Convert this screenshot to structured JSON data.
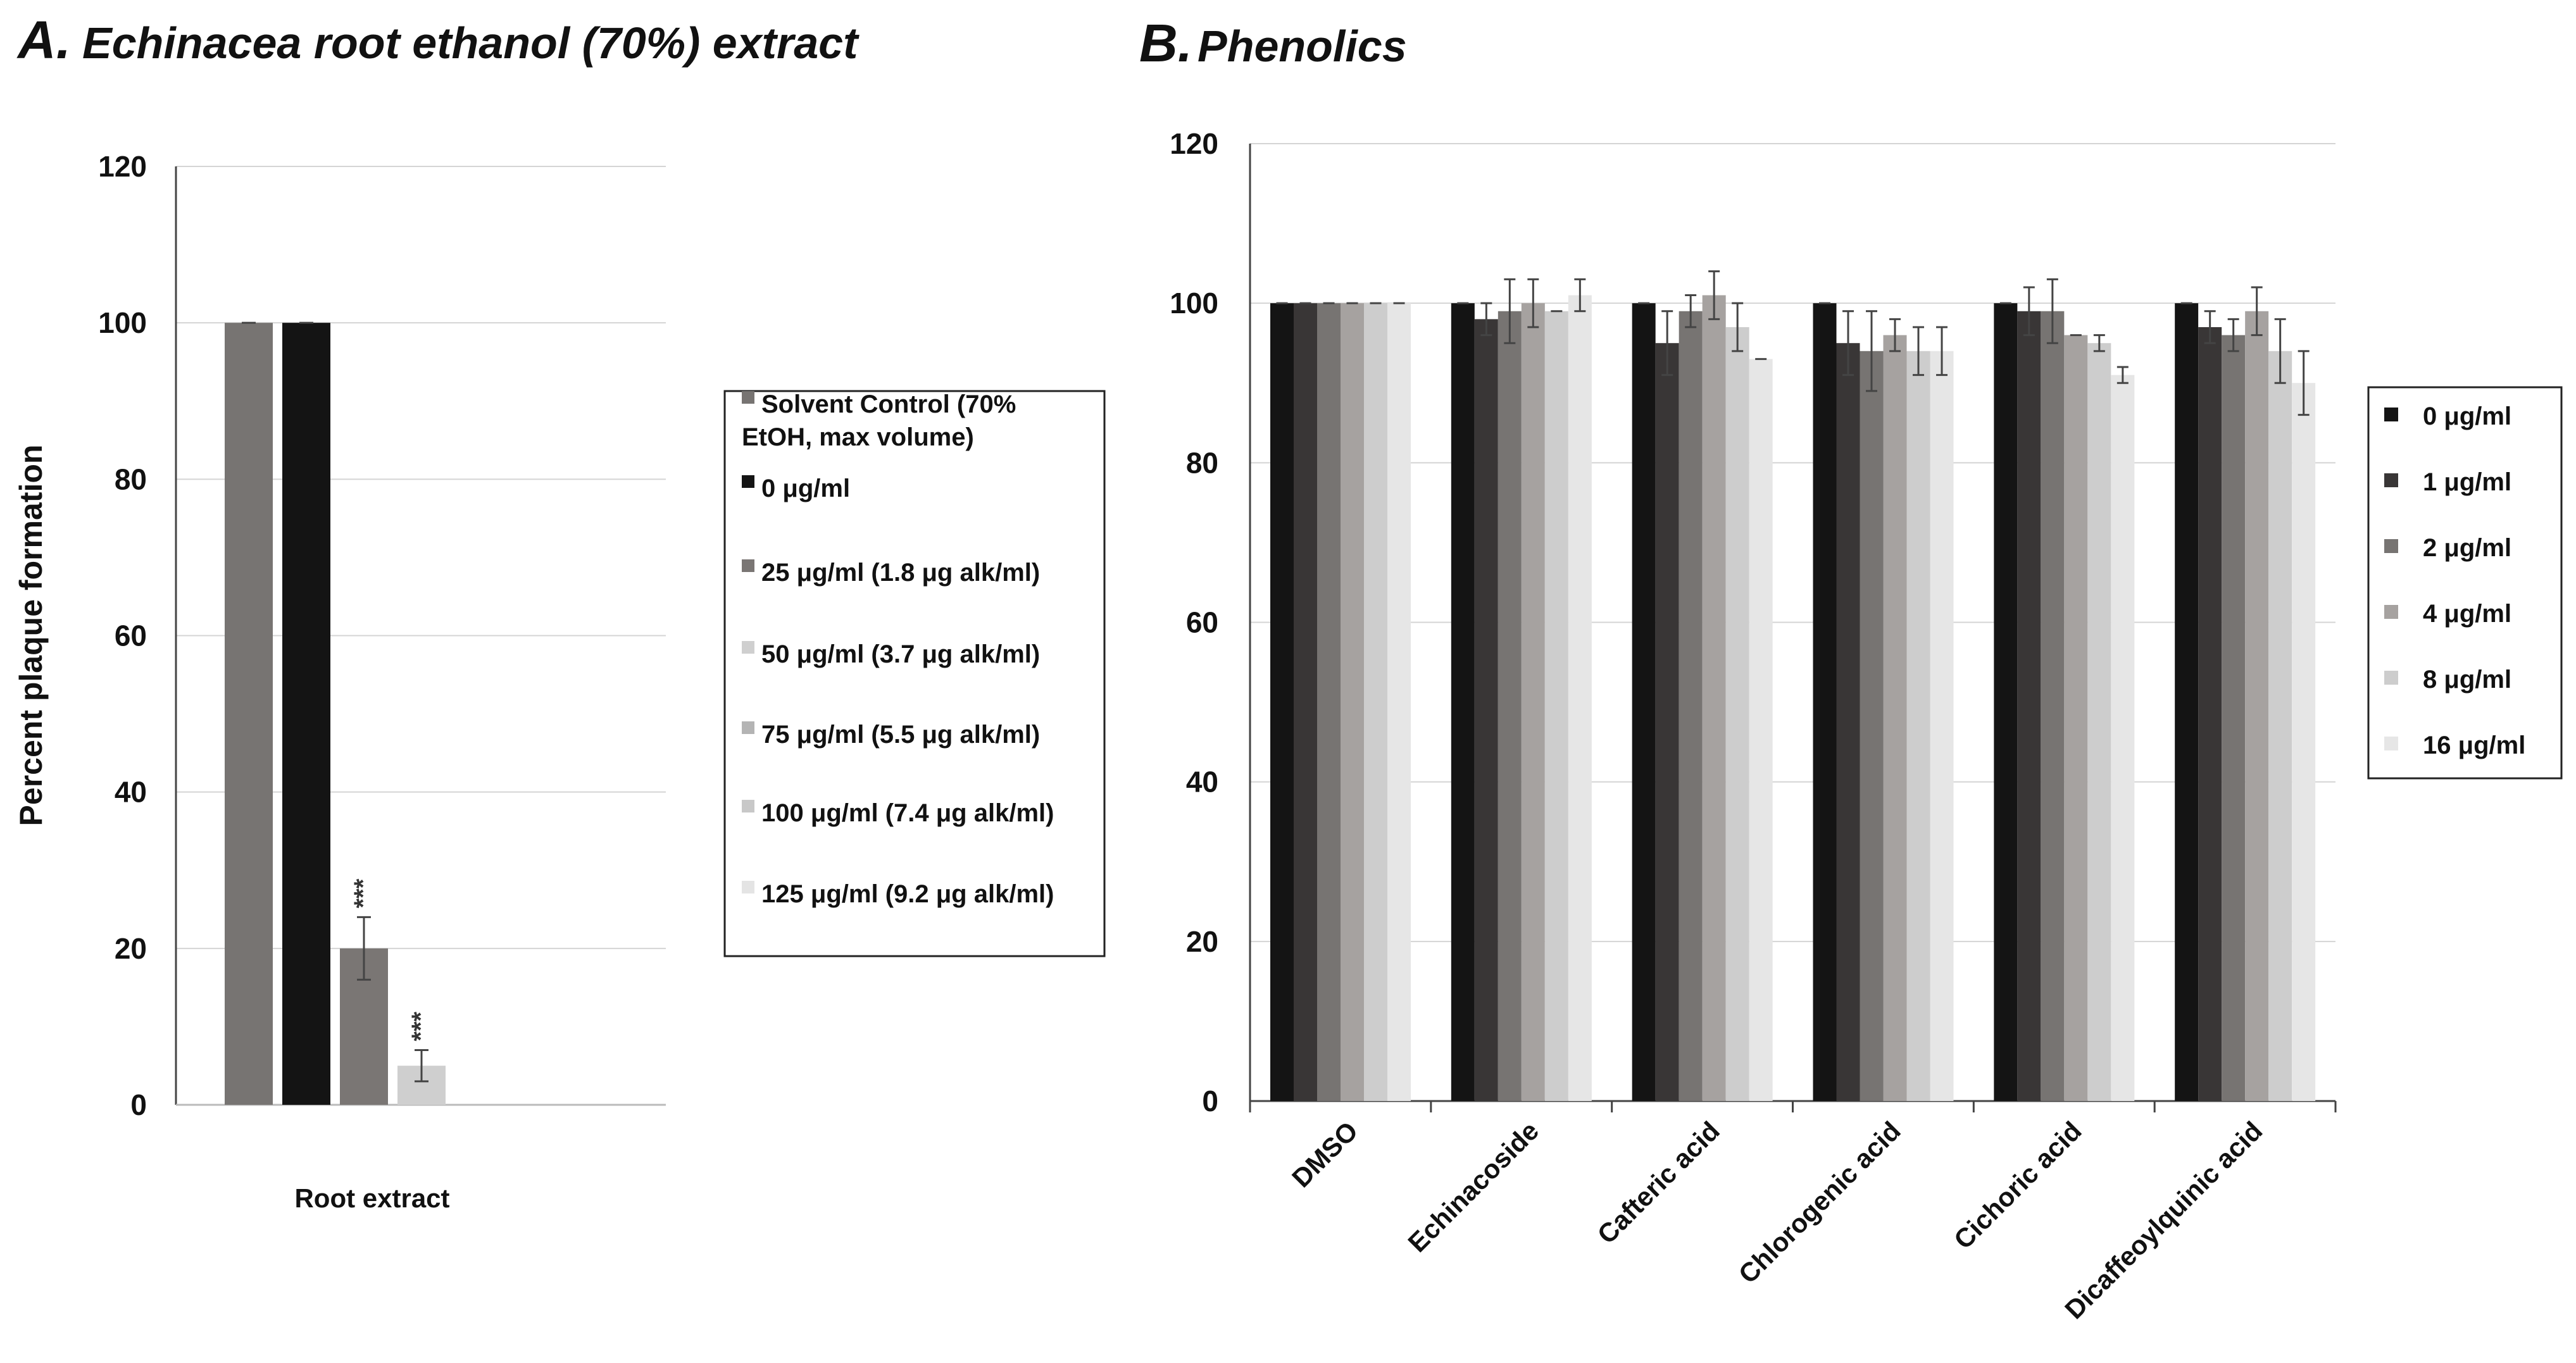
{
  "chart_data": [
    {
      "type": "bar",
      "panel_label": "A.",
      "title": "Echinacea root ethanol (70%) extract",
      "xlabel": "Root extract",
      "ylabel": "Percent plaque formation",
      "ylim": [
        0,
        120
      ],
      "yticks": [
        "0",
        "20",
        "40",
        "60",
        "80",
        "100",
        "120"
      ],
      "grid": true,
      "legend_position": "right",
      "categories": [
        "Root extract"
      ],
      "series": [
        {
          "name": "Solvent Control (70% EtOH, max volume)",
          "legend_lines": [
            "Solvent Control (70%",
            "EtOH, max volume)"
          ],
          "color": "#777472",
          "values": [
            100
          ],
          "errors": [
            0.2
          ],
          "annotation": ""
        },
        {
          "name": "0 μg/ml",
          "legend_lines": [
            "0 μg/ml"
          ],
          "color": "#141414",
          "values": [
            100
          ],
          "errors": [
            0.2
          ],
          "annotation": ""
        },
        {
          "name": "25 μg/ml (1.8 μg alk/ml)",
          "legend_lines": [
            "25 μg/ml (1.8 μg alk/ml)"
          ],
          "color": "#7a7674",
          "values": [
            20
          ],
          "errors": [
            4
          ],
          "annotation": "***"
        },
        {
          "name": "50 μg/ml (3.7 μg alk/ml)",
          "legend_lines": [
            "50 μg/ml (3.7 μg alk/ml)"
          ],
          "color": "#cfcfcf",
          "values": [
            5
          ],
          "errors": [
            2
          ],
          "annotation": "***"
        },
        {
          "name": "75 μg/ml (5.5 μg alk/ml)",
          "legend_lines": [
            "75 μg/ml (5.5 μg alk/ml)"
          ],
          "color": "#b4b4b4",
          "values": [
            0
          ],
          "errors": [
            0
          ],
          "annotation": ""
        },
        {
          "name": "100 μg/ml (7.4 μg alk/ml)",
          "legend_lines": [
            "100 μg/ml (7.4 μg alk/ml)"
          ],
          "color": "#c8c8c8",
          "values": [
            0
          ],
          "errors": [
            0
          ],
          "annotation": ""
        },
        {
          "name": "125 μg/ml (9.2 μg alk/ml)",
          "legend_lines": [
            "125 μg/ml (9.2 μg alk/ml)"
          ],
          "color": "#e4e4e4",
          "values": [
            0
          ],
          "errors": [
            0
          ],
          "annotation": ""
        }
      ]
    },
    {
      "type": "bar",
      "panel_label": "B.",
      "title": "Phenolics",
      "xlabel": "",
      "ylabel": "",
      "ylim": [
        0,
        120
      ],
      "yticks": [
        "0",
        "20",
        "40",
        "60",
        "80",
        "100",
        "120"
      ],
      "grid": true,
      "legend_position": "right",
      "categories": [
        "DMSO",
        "Echinacoside",
        "Cafteric acid",
        "Chlorogenic acid",
        "Cichoric acid",
        "Dicaffeoylquinic acid"
      ],
      "series": [
        {
          "name": "0 μg/ml",
          "color": "#141414",
          "values": [
            100,
            100,
            100,
            100,
            100,
            100
          ],
          "errors": [
            0,
            0,
            0,
            0,
            0,
            0
          ]
        },
        {
          "name": "1 μg/ml",
          "color": "#393636",
          "values": [
            100,
            98,
            95,
            95,
            99,
            97
          ],
          "errors": [
            0,
            2,
            4,
            4,
            3,
            2
          ]
        },
        {
          "name": "2 μg/ml",
          "color": "#777472",
          "values": [
            100,
            99,
            99,
            94,
            99,
            96
          ],
          "errors": [
            0,
            4,
            2,
            5,
            4,
            2
          ]
        },
        {
          "name": "4 μg/ml",
          "color": "#a6a2a0",
          "values": [
            100,
            100,
            101,
            96,
            96,
            99
          ],
          "errors": [
            0,
            3,
            3,
            2,
            0,
            3
          ]
        },
        {
          "name": "8 μg/ml",
          "color": "#cdcdcd",
          "values": [
            100,
            99,
            97,
            94,
            95,
            94
          ],
          "errors": [
            0,
            0,
            3,
            3,
            1,
            4
          ]
        },
        {
          "name": "16 μg/ml",
          "color": "#e6e6e6",
          "values": [
            100,
            101,
            93,
            94,
            91,
            90
          ],
          "errors": [
            0,
            2,
            0,
            3,
            1,
            4
          ]
        }
      ]
    }
  ]
}
